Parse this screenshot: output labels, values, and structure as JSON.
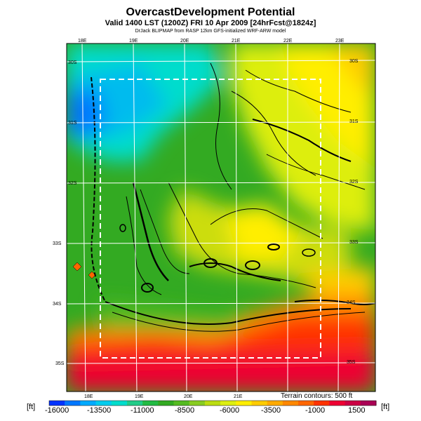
{
  "header": {
    "title": "OvercastDevelopment Potential",
    "valid": "Valid 1400 LST (1200Z) FRI 10 Apr 2009 [24hrFcst@1824z]",
    "credit": "DrJack BLIPMAP from RASP 12km GFS-initialized WRF-ARW model"
  },
  "axes": {
    "top_lon": [
      "18E",
      "19E",
      "20E",
      "21E",
      "22E",
      "23E"
    ],
    "bottom_lon": [
      "18E",
      "19E",
      "20E",
      "21E"
    ],
    "right_lat": [
      "30S",
      "31S",
      "32S",
      "33S",
      "34S",
      "35S"
    ],
    "left_lat": [
      "30S",
      "31S",
      "32S",
      "33S",
      "34S",
      "35S"
    ]
  },
  "terrain_note": "Terrain contours: 500 ft",
  "colorbar": {
    "unit": "[ft]",
    "ticks": [
      "-16000",
      "-13500",
      "-11000",
      "-8500",
      "-6000",
      "-3500",
      "-1000",
      "1500"
    ],
    "colors": [
      "#0033ff",
      "#0077ff",
      "#00aaff",
      "#00ccee",
      "#00ddcc",
      "#22cc88",
      "#22bb44",
      "#33aa22",
      "#55bb22",
      "#88cc22",
      "#bbdd11",
      "#ddee11",
      "#ffee00",
      "#ffcc00",
      "#ffaa00",
      "#ff8800",
      "#ff6600",
      "#ff3300",
      "#ee0033",
      "#cc0044",
      "#aa0055"
    ]
  }
}
